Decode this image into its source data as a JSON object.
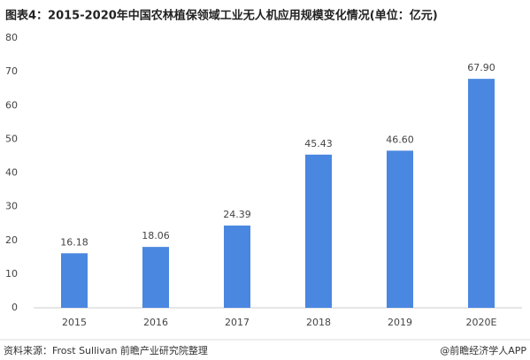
{
  "chart_data": {
    "type": "bar",
    "title": "图表4：2015-2020年中国农林植保领域工业无人机应用规模变化情况(单位：亿元)",
    "categories": [
      "2015",
      "2016",
      "2017",
      "2018",
      "2019",
      "2020E"
    ],
    "values": [
      16.18,
      18.06,
      24.39,
      45.43,
      46.6,
      67.9
    ],
    "value_labels": [
      "16.18",
      "18.06",
      "24.39",
      "45.43",
      "46.60",
      "67.90"
    ],
    "color": "#4a87e0",
    "ylim": [
      0,
      80
    ],
    "yticks": [
      0,
      10,
      20,
      30,
      40,
      50,
      60,
      70,
      80
    ],
    "grid": false,
    "source": "资料来源：Frost Sullivan 前瞻产业研究院整理",
    "credit": "@前瞻经济学人APP"
  }
}
